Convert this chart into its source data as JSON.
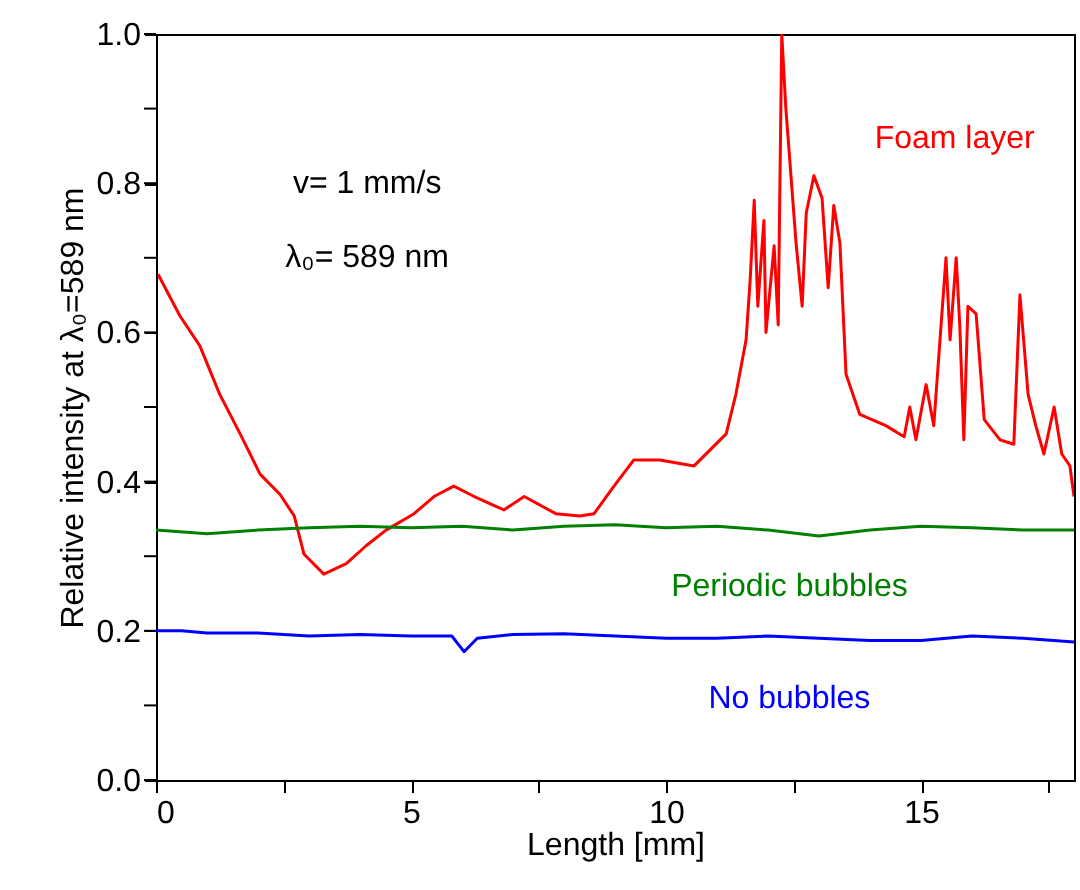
{
  "chart_data": {
    "type": "line",
    "xlabel": "Length [mm]",
    "ylabel": "Relative intensity at λ₀=589 nm",
    "annotations": [
      "v= 1 mm/s",
      "λ₀= 589 nm"
    ],
    "xlim": [
      0,
      18
    ],
    "ylim": [
      0,
      1
    ],
    "xticks": [
      0,
      {
        "value": 2.5,
        "label": null
      },
      5,
      {
        "value": 7.5,
        "label": null
      },
      10,
      {
        "value": 12.5,
        "label": null
      },
      15,
      {
        "value": 17.5,
        "label": null
      }
    ],
    "yticks": [
      {
        "value": 0,
        "label": "0.0"
      },
      {
        "value": 0.1,
        "label": null
      },
      0.2,
      {
        "value": 0.3,
        "label": null
      },
      0.4,
      {
        "value": 0.5,
        "label": null
      },
      0.6,
      {
        "value": 0.7,
        "label": null
      },
      0.8,
      {
        "value": 0.9,
        "label": null
      },
      {
        "value": 1,
        "label": "1.0"
      }
    ],
    "grid": false,
    "line_style": "solid",
    "marker": "none",
    "series": [
      {
        "name": "Foam layer",
        "color": "#ff0000",
        "x": [
          0.04,
          0.47,
          0.86,
          1.25,
          1.65,
          2.04,
          2.43,
          2.71,
          2.9,
          3.29,
          3.73,
          4.12,
          4.51,
          5.06,
          5.45,
          5.84,
          6.24,
          6.82,
          7.22,
          7.84,
          8.31,
          8.59,
          8.98,
          9.37,
          9.88,
          10.55,
          11.18,
          11.37,
          11.57,
          11.65,
          11.73,
          11.8,
          11.92,
          11.96,
          12.12,
          12.2,
          12.27,
          12.35,
          12.55,
          12.67,
          12.75,
          12.9,
          13.06,
          13.18,
          13.29,
          13.41,
          13.53,
          13.8,
          14.31,
          14.67,
          14.78,
          14.9,
          15.1,
          15.25,
          15.49,
          15.57,
          15.69,
          15.76,
          15.84,
          15.92,
          16.08,
          16.24,
          16.55,
          16.82,
          16.94,
          17.1,
          17.25,
          17.41,
          17.61,
          17.76,
          17.92,
          18.0
        ],
        "values": [
          0.678,
          0.622,
          0.582,
          0.517,
          0.464,
          0.41,
          0.383,
          0.354,
          0.303,
          0.276,
          0.29,
          0.314,
          0.335,
          0.357,
          0.38,
          0.394,
          0.38,
          0.362,
          0.38,
          0.357,
          0.354,
          0.357,
          0.394,
          0.429,
          0.429,
          0.421,
          0.464,
          0.517,
          0.59,
          0.67,
          0.777,
          0.635,
          0.75,
          0.6,
          0.716,
          0.61,
          1.0,
          0.9,
          0.72,
          0.635,
          0.76,
          0.81,
          0.78,
          0.66,
          0.77,
          0.72,
          0.544,
          0.49,
          0.475,
          0.46,
          0.5,
          0.456,
          0.53,
          0.475,
          0.7,
          0.59,
          0.7,
          0.61,
          0.456,
          0.635,
          0.625,
          0.483,
          0.456,
          0.45,
          0.65,
          0.517,
          0.475,
          0.437,
          0.5,
          0.437,
          0.421,
          0.38
        ]
      },
      {
        "name": "Periodic bubbles",
        "color": "#008000",
        "x": [
          0,
          1,
          2,
          3,
          4,
          5,
          6,
          7,
          8,
          9,
          10,
          11,
          12,
          13,
          14,
          15,
          16,
          17,
          18
        ],
        "values": [
          0.335,
          0.33,
          0.335,
          0.338,
          0.34,
          0.338,
          0.34,
          0.335,
          0.34,
          0.342,
          0.338,
          0.34,
          0.335,
          0.327,
          0.335,
          0.34,
          0.338,
          0.335,
          0.335
        ]
      },
      {
        "name": "No bubbles",
        "color": "#0000ff",
        "x": [
          0,
          0.5,
          1,
          2,
          3,
          4,
          5,
          5.8,
          6.04,
          6.3,
          7,
          8,
          9,
          10,
          11,
          12,
          13,
          14,
          15,
          16,
          17,
          18
        ],
        "values": [
          0.2,
          0.2,
          0.197,
          0.197,
          0.193,
          0.195,
          0.193,
          0.193,
          0.172,
          0.19,
          0.195,
          0.196,
          0.193,
          0.19,
          0.19,
          0.193,
          0.19,
          0.187,
          0.187,
          0.193,
          0.19,
          0.185
        ]
      }
    ]
  }
}
